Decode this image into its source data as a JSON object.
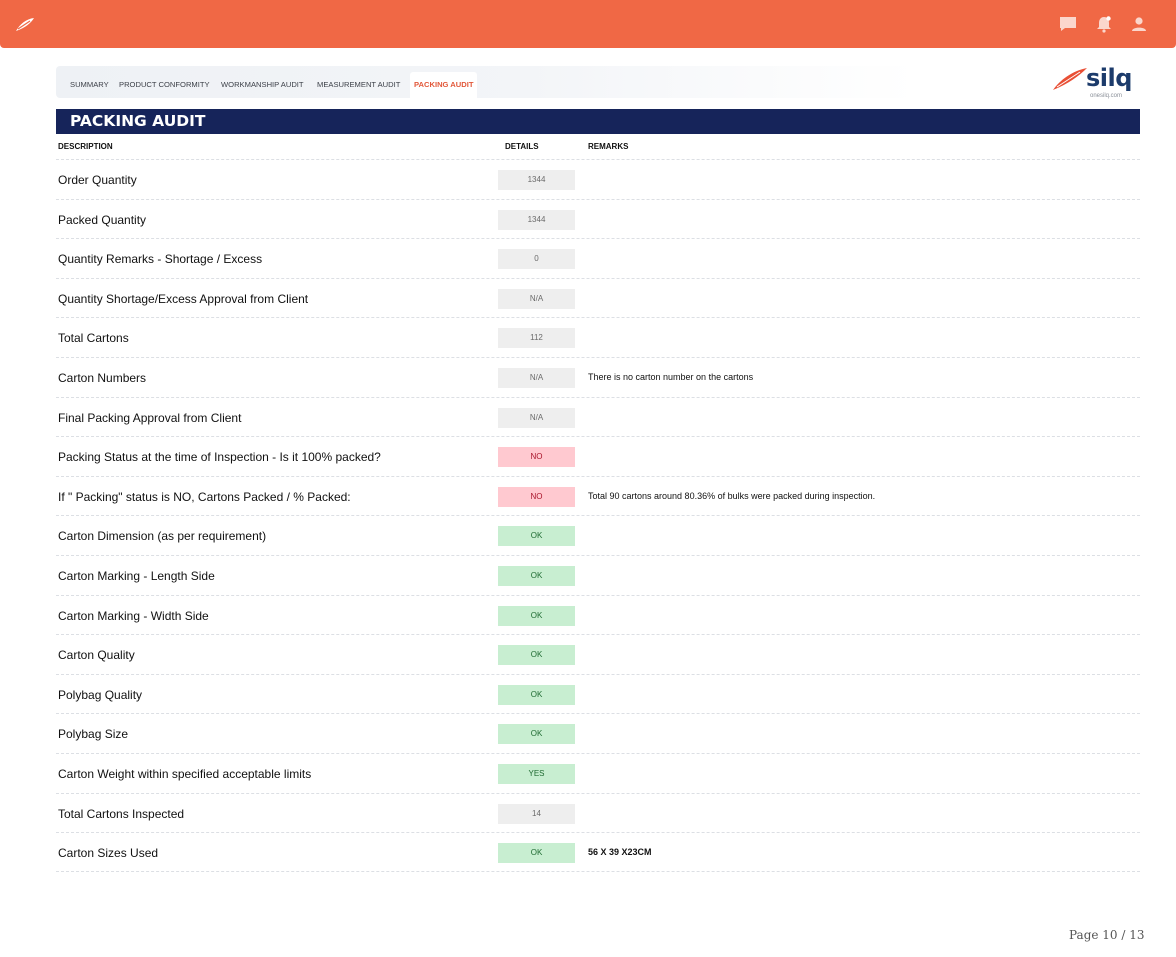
{
  "header": {
    "icons": [
      "leaf-logo",
      "chat-icon",
      "notification-bell-icon",
      "user-icon"
    ],
    "color": "#f06845"
  },
  "tabs": [
    {
      "label": "SUMMARY",
      "active": false
    },
    {
      "label": "PRODUCT CONFORMITY",
      "active": false
    },
    {
      "label": "WORKMANSHIP AUDIT",
      "active": false
    },
    {
      "label": "MEASUREMENT AUDIT",
      "active": false
    },
    {
      "label": "PACKING AUDIT",
      "active": true
    }
  ],
  "brand": {
    "name": "silq",
    "url": "onesilq.com"
  },
  "section_title": "PACKING AUDIT",
  "columns": {
    "description": "DESCRIPTION",
    "details": "DETAILS",
    "remarks": "REMARKS"
  },
  "rows": [
    {
      "description": "Order Quantity",
      "detail": "1344",
      "status": "neutral",
      "remark": ""
    },
    {
      "description": "Packed Quantity",
      "detail": "1344",
      "status": "neutral",
      "remark": ""
    },
    {
      "description": "Quantity Remarks - Shortage / Excess",
      "detail": "0",
      "status": "neutral",
      "remark": ""
    },
    {
      "description": "Quantity Shortage/Excess Approval from Client",
      "detail": "N/A",
      "status": "neutral",
      "remark": ""
    },
    {
      "description": "Total Cartons",
      "detail": "112",
      "status": "neutral",
      "remark": ""
    },
    {
      "description": "Carton Numbers",
      "detail": "N/A",
      "status": "neutral",
      "remark": "There is no carton number on the cartons"
    },
    {
      "description": "Final Packing Approval from Client",
      "detail": "N/A",
      "status": "neutral",
      "remark": ""
    },
    {
      "description": "Packing Status at the time of Inspection - Is it 100% packed?",
      "detail": "NO",
      "status": "negative",
      "remark": ""
    },
    {
      "description": "If \" Packing\" status is NO, Cartons Packed / % Packed:",
      "detail": "NO",
      "status": "negative",
      "remark": "Total 90 cartons around 80.36% of bulks were packed during inspection."
    },
    {
      "description": "Carton Dimension (as per requirement)",
      "detail": "OK",
      "status": "positive",
      "remark": ""
    },
    {
      "description": "Carton Marking - Length Side",
      "detail": "OK",
      "status": "positive",
      "remark": ""
    },
    {
      "description": "Carton Marking - Width Side",
      "detail": "OK",
      "status": "positive",
      "remark": ""
    },
    {
      "description": "Carton Quality",
      "detail": "OK",
      "status": "positive",
      "remark": ""
    },
    {
      "description": "Polybag Quality",
      "detail": "OK",
      "status": "positive",
      "remark": ""
    },
    {
      "description": "Polybag Size",
      "detail": "OK",
      "status": "positive",
      "remark": ""
    },
    {
      "description": "Carton Weight within specified acceptable limits",
      "detail": "YES",
      "status": "positive",
      "remark": ""
    },
    {
      "description": "Total Cartons Inspected",
      "detail": "14",
      "status": "neutral",
      "remark": ""
    },
    {
      "description": "Carton Sizes Used",
      "detail": "OK",
      "status": "positive",
      "remark": "56 X 39 X23CM",
      "remark_bold": true
    }
  ],
  "page": "Page 10 / 13"
}
